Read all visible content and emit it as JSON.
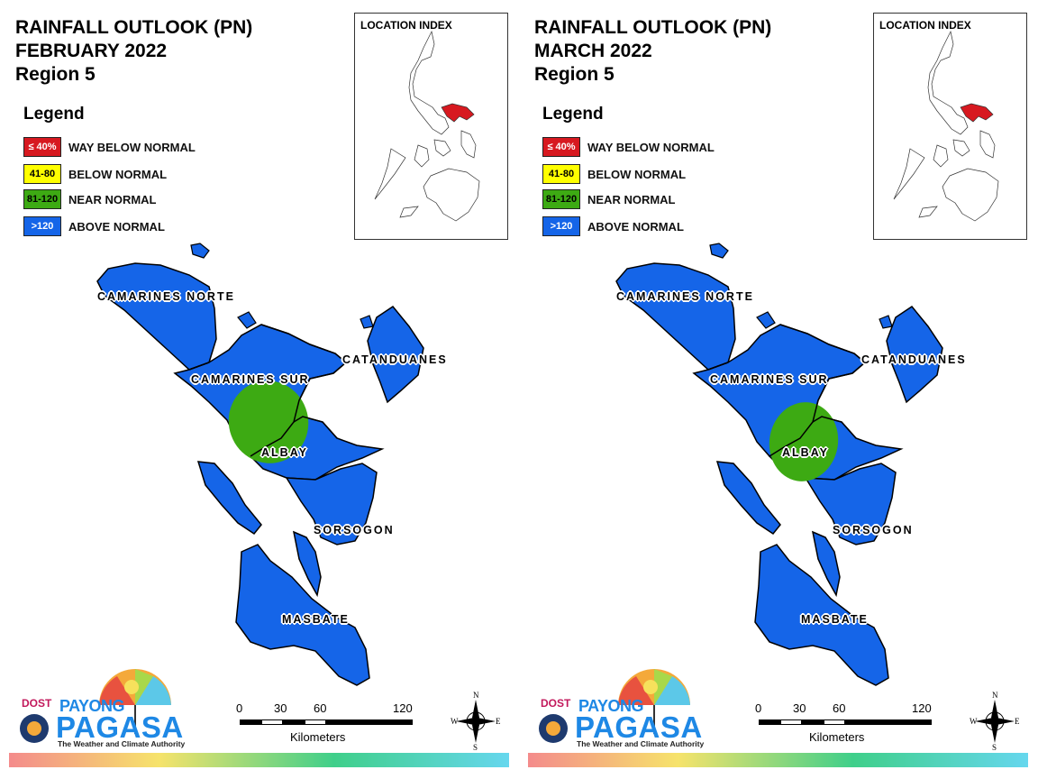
{
  "panels": [
    {
      "title_line1": "RAINFALL OUTLOOK (PN)",
      "title_line2": "FEBRUARY 2022",
      "title_line3": "Region 5",
      "albay_label": "ALBAY"
    },
    {
      "title_line1": "RAINFALL OUTLOOK (PN)",
      "title_line2": "MARCH 2022",
      "title_line3": "Region 5",
      "albay_label": "ALBAY"
    }
  ],
  "legend": {
    "title": "Legend",
    "items": [
      {
        "swatch": "≤ 40%",
        "label": "WAY BELOW NORMAL",
        "color": "#d71920",
        "text_color": "#ffffff"
      },
      {
        "swatch": "41-80",
        "label": "BELOW NORMAL",
        "color": "#ffff00",
        "text_color": "#000000"
      },
      {
        "swatch": "81-120",
        "label": "NEAR NORMAL",
        "color": "#3daa13",
        "text_color": "#000000"
      },
      {
        "swatch": ">120",
        "label": "ABOVE NORMAL",
        "color": "#1565e8",
        "text_color": "#ffffff"
      }
    ]
  },
  "location_index": {
    "title": "LOCATION INDEX"
  },
  "provinces": {
    "camarines_norte": "CAMARINES NORTE",
    "camarines_sur": "CAMARINES SUR",
    "catanduanes": "CATANDUANES",
    "sorsogon": "SORSOGON",
    "masbate": "MASBATE"
  },
  "scale_bar": {
    "ticks": [
      "0",
      "30",
      "60",
      "120"
    ],
    "unit": "Kilometers"
  },
  "compass": {
    "n": "N",
    "s": "S",
    "e": "E",
    "w": "W"
  },
  "logo": {
    "dost": "DOST",
    "payong": "PAYONG",
    "pagasa": "PAGASA",
    "tagline": "The Weather and Climate Authority"
  },
  "colors": {
    "above_normal": "#1565e8",
    "near_normal": "#3daa13",
    "index_highlight": "#d71920"
  }
}
